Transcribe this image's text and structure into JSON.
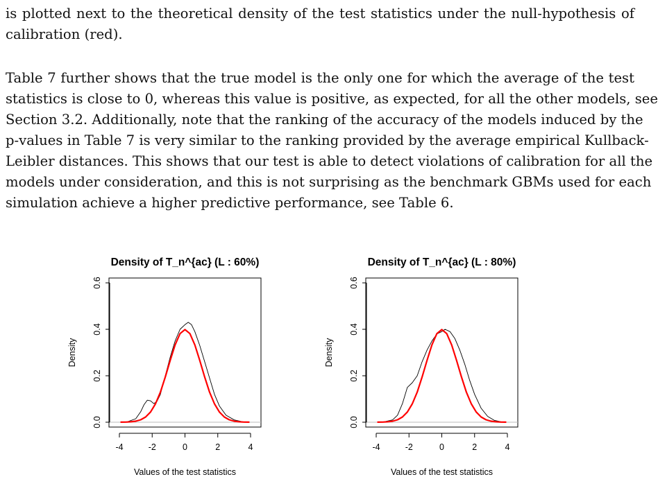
{
  "paragraph_top": {
    "lines": [
      "is plotted next to the theoretical density of the test statistics under the null-hypothesis of",
      "calibration (red)."
    ]
  },
  "paragraph_main": {
    "lines": [
      "Table 7 further shows that the true model is the only one for which the average of the test",
      "statistics is close to 0, whereas this value is positive, as expected, for all the other models, see",
      "Section 3.2. Additionally, note that the ranking of the accuracy of the models induced by the",
      "p-values in Table 7 is very similar to the ranking provided by the average empirical Kullback-",
      "Leibler distances. This shows that our test is able to detect violations of calibration for all the",
      "models under consideration, and this is not surprising as the benchmark GBMs used for each",
      "simulation achieve a higher predictive performance, see Table 6."
    ]
  },
  "colors": {
    "theoretical": "#ff0000",
    "empirical": "#000000",
    "baseline": "#bbbbbb"
  },
  "chart_data": [
    {
      "type": "line",
      "title": "Density of T_n^{ac} (L : 60%)",
      "xlabel": "Values of the test statistics",
      "ylabel": "Density",
      "xlim": [
        -4,
        4
      ],
      "ylim": [
        0,
        0.6
      ],
      "xticks": [
        "-4",
        "-2",
        "0",
        "2",
        "4"
      ],
      "yticks": [
        "0.0",
        "0.2",
        "0.4",
        "0.6"
      ],
      "grid": false,
      "series": [
        {
          "color": "#000000",
          "x": [
            -3.9,
            -3.5,
            -3.0,
            -2.7,
            -2.5,
            -2.3,
            -2.1,
            -1.9,
            -1.7,
            -1.5,
            -1.2,
            -0.9,
            -0.6,
            -0.3,
            0.0,
            0.2,
            0.4,
            0.6,
            0.9,
            1.2,
            1.5,
            1.8,
            2.1,
            2.5,
            3.0,
            3.5,
            3.9
          ],
          "y": [
            0.0,
            0.002,
            0.015,
            0.045,
            0.075,
            0.095,
            0.092,
            0.08,
            0.09,
            0.12,
            0.2,
            0.28,
            0.35,
            0.4,
            0.42,
            0.43,
            0.42,
            0.39,
            0.33,
            0.26,
            0.19,
            0.12,
            0.07,
            0.03,
            0.01,
            0.002,
            0.0
          ]
        },
        {
          "color": "#ff0000",
          "x": [
            -3.9,
            -3.6,
            -3.3,
            -3.0,
            -2.7,
            -2.4,
            -2.1,
            -1.8,
            -1.5,
            -1.2,
            -0.9,
            -0.6,
            -0.3,
            0.0,
            0.3,
            0.6,
            0.9,
            1.2,
            1.5,
            1.8,
            2.1,
            2.4,
            2.7,
            3.0,
            3.3,
            3.6,
            3.9
          ],
          "y": [
            0.0002,
            0.0006,
            0.0017,
            0.0044,
            0.0104,
            0.0224,
            0.044,
            0.079,
            0.1295,
            0.1942,
            0.2661,
            0.3332,
            0.3814,
            0.3989,
            0.3814,
            0.3332,
            0.2661,
            0.1942,
            0.1295,
            0.079,
            0.044,
            0.0224,
            0.0104,
            0.0044,
            0.0017,
            0.0006,
            0.0002
          ]
        }
      ]
    },
    {
      "type": "line",
      "title": "Density of T_n^{ac} (L : 80%)",
      "xlabel": "Values of the test statistics",
      "ylabel": "Density",
      "xlim": [
        -4,
        4
      ],
      "ylim": [
        0,
        0.6
      ],
      "xticks": [
        "-4",
        "-2",
        "0",
        "2",
        "4"
      ],
      "yticks": [
        "0.0",
        "0.2",
        "0.4",
        "0.6"
      ],
      "grid": false,
      "series": [
        {
          "color": "#000000",
          "x": [
            -3.9,
            -3.5,
            -3.0,
            -2.7,
            -2.4,
            -2.1,
            -1.8,
            -1.5,
            -1.2,
            -0.9,
            -0.6,
            -0.3,
            0.0,
            0.2,
            0.5,
            0.8,
            1.1,
            1.4,
            1.7,
            2.0,
            2.4,
            2.8,
            3.2,
            3.6,
            3.9
          ],
          "y": [
            0.0,
            0.002,
            0.01,
            0.03,
            0.08,
            0.15,
            0.17,
            0.2,
            0.26,
            0.31,
            0.35,
            0.38,
            0.39,
            0.4,
            0.39,
            0.36,
            0.31,
            0.25,
            0.18,
            0.12,
            0.06,
            0.025,
            0.008,
            0.002,
            0.0
          ]
        },
        {
          "color": "#ff0000",
          "x": [
            -3.9,
            -3.6,
            -3.3,
            -3.0,
            -2.7,
            -2.4,
            -2.1,
            -1.8,
            -1.5,
            -1.2,
            -0.9,
            -0.6,
            -0.3,
            0.0,
            0.3,
            0.6,
            0.9,
            1.2,
            1.5,
            1.8,
            2.1,
            2.4,
            2.7,
            3.0,
            3.3,
            3.6,
            3.9
          ],
          "y": [
            0.0002,
            0.0006,
            0.0017,
            0.0044,
            0.0104,
            0.0224,
            0.044,
            0.079,
            0.1295,
            0.1942,
            0.2661,
            0.3332,
            0.3814,
            0.3989,
            0.3814,
            0.3332,
            0.2661,
            0.1942,
            0.1295,
            0.079,
            0.044,
            0.0224,
            0.0104,
            0.0044,
            0.0017,
            0.0006,
            0.0002
          ]
        }
      ]
    }
  ]
}
